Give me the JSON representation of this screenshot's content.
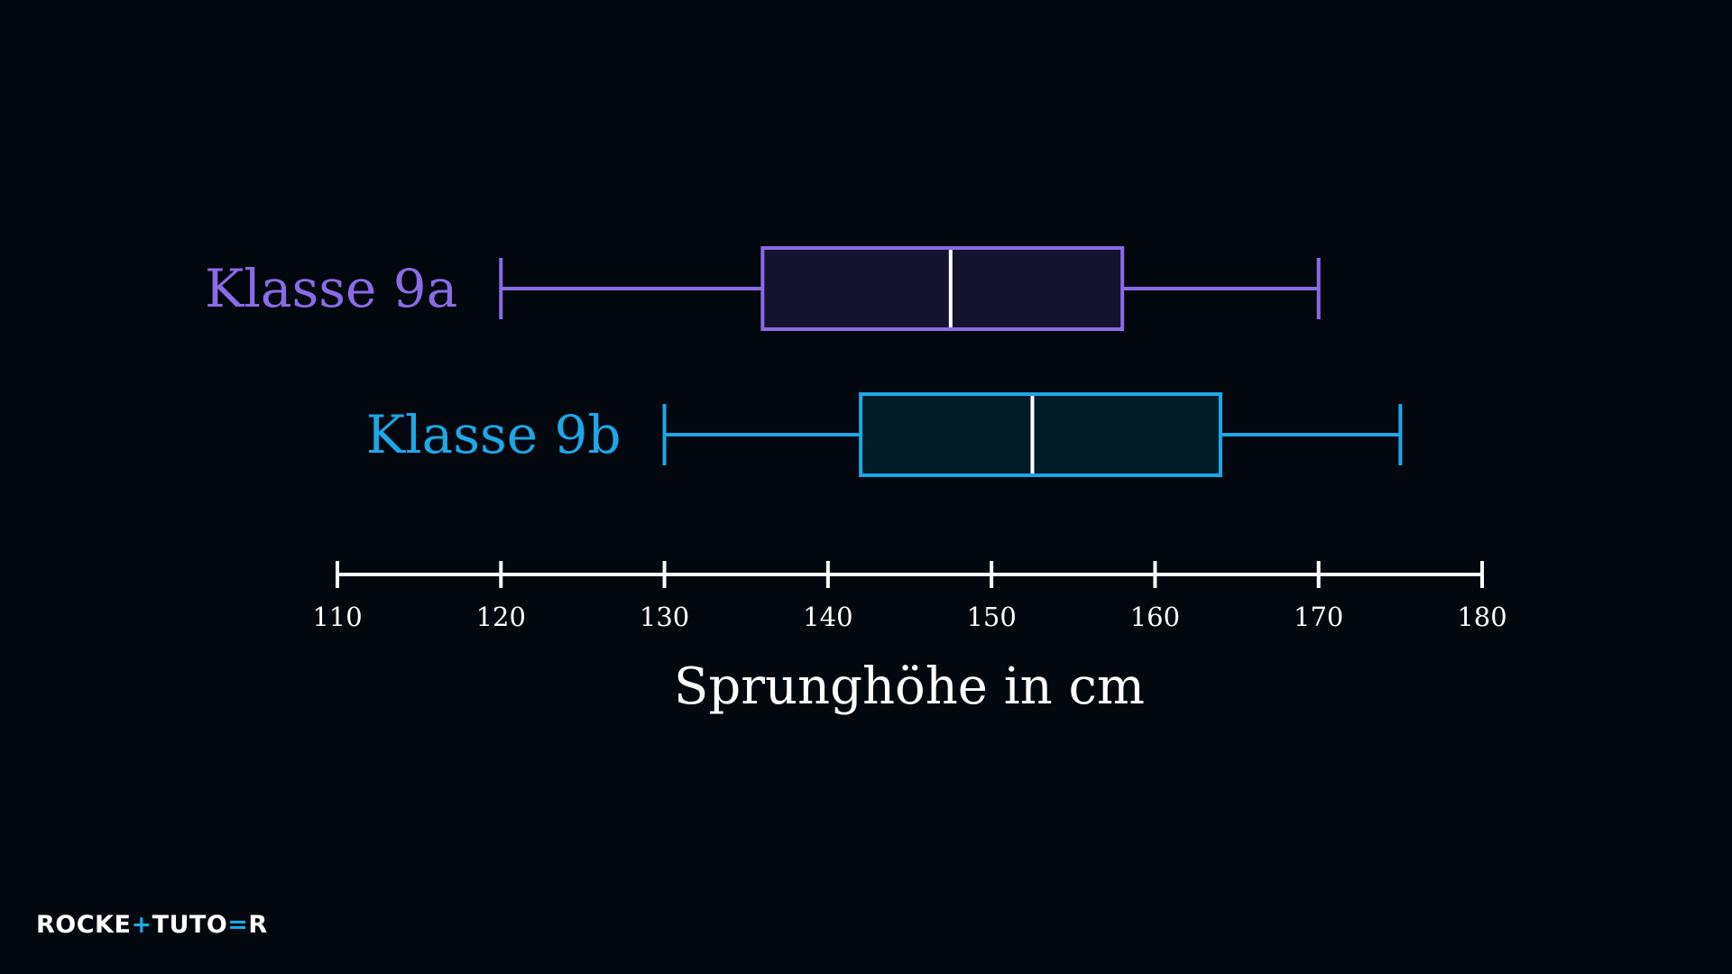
{
  "brand": {
    "logo_text": "ROCKETTUTOR",
    "accent_color": "#1ba8e6"
  },
  "chart_data": {
    "type": "boxplot",
    "xlabel": "Sprunghöhe in cm",
    "xlim": [
      110,
      180
    ],
    "xticks": [
      110,
      120,
      130,
      140,
      150,
      160,
      170,
      180
    ],
    "grid": false,
    "series": [
      {
        "name": "Klasse 9a",
        "color": "#8a6be6",
        "fill": "#131330",
        "min": 120,
        "q1": 136,
        "median": 147.5,
        "q3": 158,
        "max": 170
      },
      {
        "name": "Klasse 9b",
        "color": "#1ba8e6",
        "fill": "#021c28",
        "min": 130,
        "q1": 142,
        "median": 152.5,
        "q3": 164,
        "max": 175
      }
    ]
  }
}
